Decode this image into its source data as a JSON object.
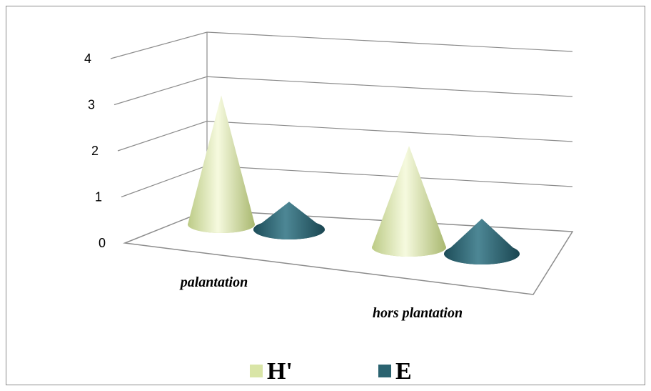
{
  "colors": {
    "h_prime": "#d9e5a7",
    "e": "#2b6370",
    "gridline": "#8c8c8c",
    "frame": "#8c8c8c"
  },
  "chart_data": {
    "type": "bar",
    "subtype": "3d-cone",
    "categories": [
      "palantation",
      "hors plantation"
    ],
    "series": [
      {
        "name": "H'",
        "values": [
          3.5,
          2.75
        ]
      },
      {
        "name": "E",
        "values": [
          0.75,
          0.95
        ]
      }
    ],
    "ylim": [
      0,
      4
    ],
    "yticks": [
      "0",
      "1",
      "2",
      "3",
      "4"
    ],
    "grid": true,
    "legend_position": "bottom"
  }
}
